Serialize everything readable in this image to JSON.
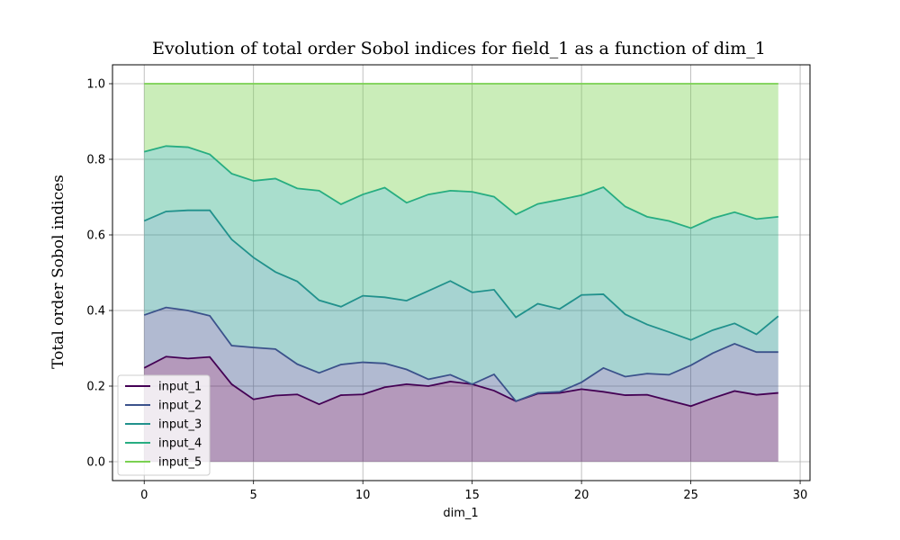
{
  "chart_data": {
    "type": "area",
    "title": "Evolution of total order Sobol indices for field_1 as a function of dim_1",
    "xlabel": "dim_1",
    "ylabel": "Total order Sobol indices",
    "xlim": [
      -1.45,
      30.45
    ],
    "ylim": [
      -0.05,
      1.05
    ],
    "xticks": [
      0,
      5,
      10,
      15,
      20,
      25,
      30
    ],
    "yticks": [
      0.0,
      0.2,
      0.4,
      0.6,
      0.8,
      1.0
    ],
    "ytick_labels": [
      "0.0",
      "0.2",
      "0.4",
      "0.6",
      "0.8",
      "1.0"
    ],
    "grid": true,
    "legend_position": "lower-left",
    "stacked": true,
    "x": [
      0,
      1,
      2,
      3,
      4,
      5,
      6,
      7,
      8,
      9,
      10,
      11,
      12,
      13,
      14,
      15,
      16,
      17,
      18,
      19,
      20,
      21,
      22,
      23,
      24,
      25,
      26,
      27,
      28,
      29
    ],
    "series": [
      {
        "name": "input_1",
        "color": "#440154",
        "values": [
          0.248,
          0.278,
          0.273,
          0.277,
          0.205,
          0.165,
          0.175,
          0.178,
          0.152,
          0.176,
          0.178,
          0.197,
          0.205,
          0.2,
          0.212,
          0.205,
          0.188,
          0.16,
          0.18,
          0.182,
          0.192,
          0.185,
          0.176,
          0.177,
          0.162,
          0.147,
          0.168,
          0.187,
          0.177,
          0.182
        ]
      },
      {
        "name": "input_2",
        "color": "#3b528b",
        "values": [
          0.388,
          0.408,
          0.4,
          0.386,
          0.307,
          0.302,
          0.298,
          0.258,
          0.235,
          0.257,
          0.263,
          0.26,
          0.244,
          0.218,
          0.23,
          0.205,
          0.231,
          0.16,
          0.182,
          0.185,
          0.21,
          0.248,
          0.225,
          0.233,
          0.23,
          0.255,
          0.287,
          0.312,
          0.29,
          0.29
        ]
      },
      {
        "name": "input_3",
        "color": "#21918c",
        "values": [
          0.637,
          0.662,
          0.665,
          0.665,
          0.588,
          0.54,
          0.502,
          0.477,
          0.427,
          0.41,
          0.439,
          0.435,
          0.426,
          0.452,
          0.478,
          0.448,
          0.455,
          0.382,
          0.418,
          0.404,
          0.441,
          0.443,
          0.39,
          0.363,
          0.343,
          0.322,
          0.348,
          0.366,
          0.337,
          0.385
        ]
      },
      {
        "name": "input_4",
        "color": "#27ad81",
        "values": [
          0.82,
          0.835,
          0.832,
          0.813,
          0.762,
          0.743,
          0.749,
          0.723,
          0.717,
          0.681,
          0.707,
          0.725,
          0.685,
          0.707,
          0.717,
          0.714,
          0.701,
          0.654,
          0.682,
          0.693,
          0.705,
          0.726,
          0.675,
          0.648,
          0.637,
          0.618,
          0.644,
          0.66,
          0.642,
          0.648
        ]
      },
      {
        "name": "input_5",
        "color": "#7ad151",
        "values": [
          1.0,
          1.0,
          1.0,
          1.0,
          1.0,
          1.0,
          1.0,
          1.0,
          1.0,
          1.0,
          1.0,
          1.0,
          1.0,
          1.0,
          1.0,
          1.0,
          1.0,
          1.0,
          1.0,
          1.0,
          1.0,
          1.0,
          1.0,
          1.0,
          1.0,
          1.0,
          1.0,
          1.0,
          1.0,
          1.0
        ]
      }
    ]
  }
}
